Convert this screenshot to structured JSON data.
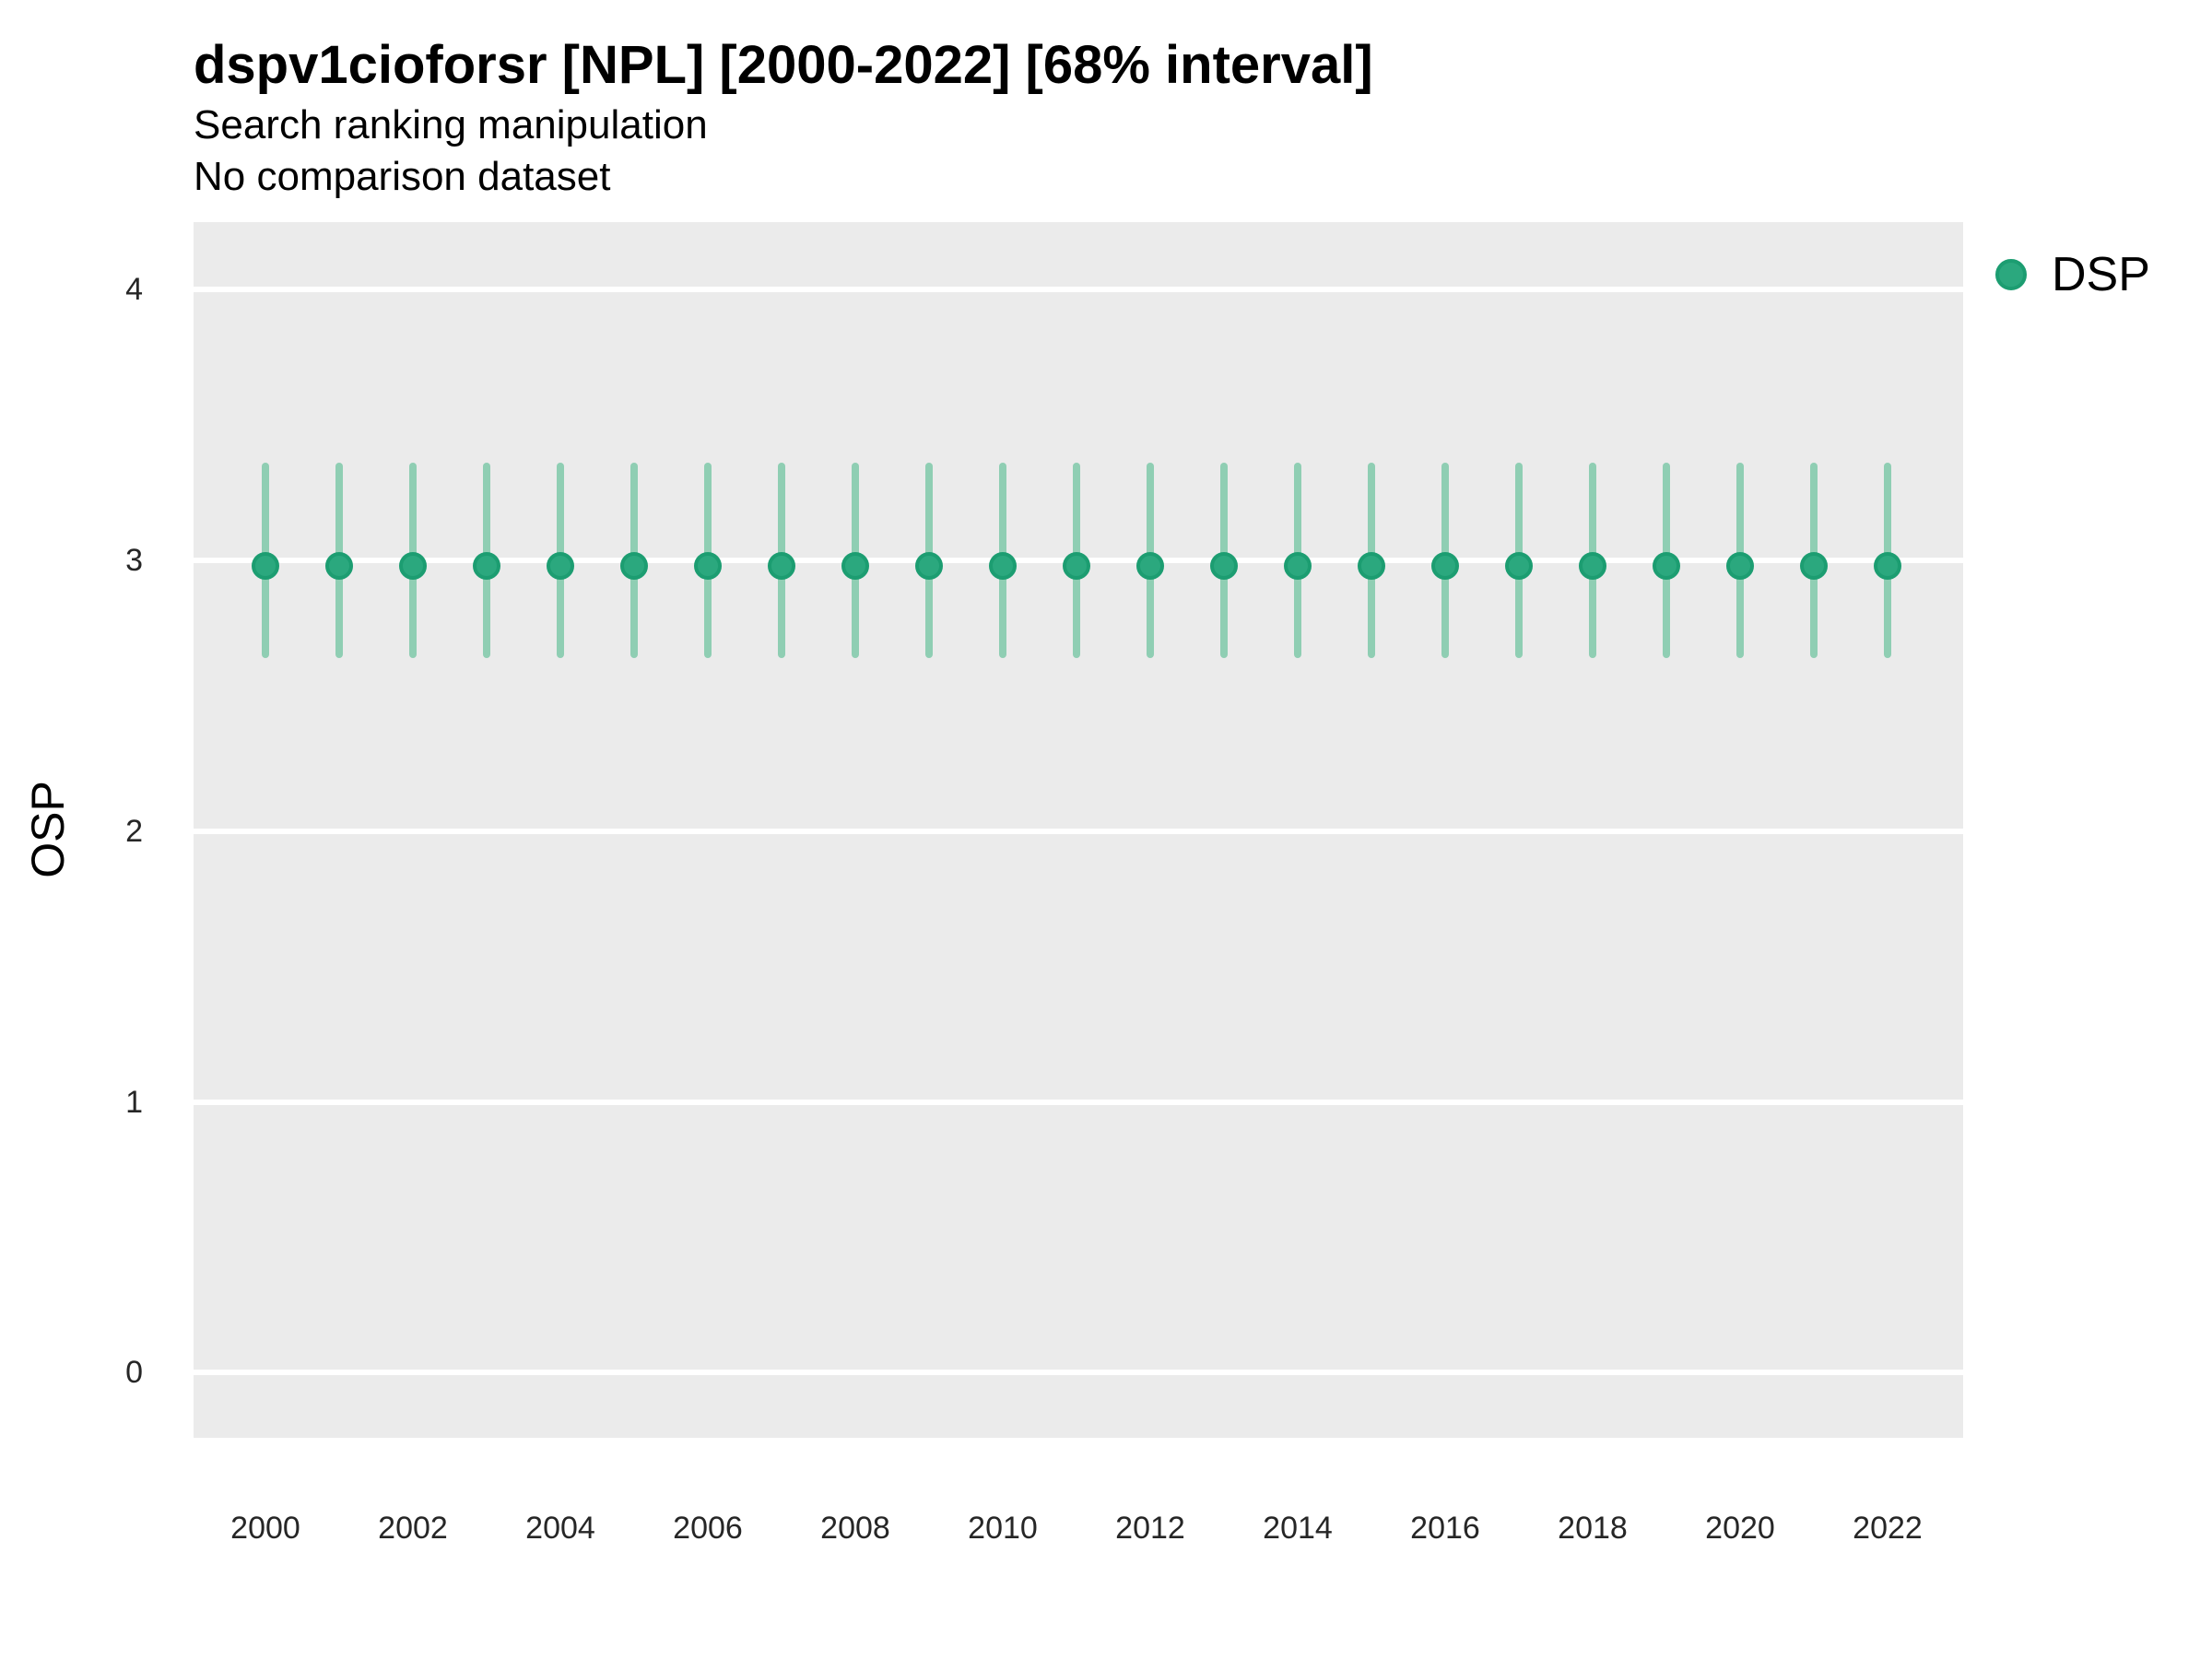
{
  "header": {
    "title": "dspv1cioforsr [NPL] [2000-2022] [68% interval]",
    "subtitle": "Search ranking manipulation",
    "note": "No comparison dataset"
  },
  "legend": {
    "label": "DSP",
    "position": "right-top"
  },
  "colors": {
    "point_fill": "#2BA87E",
    "point_stroke": "#1C9D71",
    "interval": "#8FCEB3",
    "panel_bg": "#EBEBEB",
    "gridline": "#FFFFFF",
    "tick_text": "#262626",
    "title_text": "#000000"
  },
  "chart_data": {
    "type": "pointrange",
    "title": "dspv1cioforsr [NPL] [2000-2022] [68% interval]",
    "subtitle": "Search ranking manipulation",
    "note": "No comparison dataset",
    "xlabel": "",
    "ylabel": "OSP",
    "interval_label": "68% interval",
    "x": [
      2000,
      2001,
      2002,
      2003,
      2004,
      2005,
      2006,
      2007,
      2008,
      2009,
      2010,
      2011,
      2012,
      2013,
      2014,
      2015,
      2016,
      2017,
      2018,
      2019,
      2020,
      2021,
      2022
    ],
    "xticks": [
      2000,
      2002,
      2004,
      2006,
      2008,
      2010,
      2012,
      2014,
      2016,
      2018,
      2020,
      2022
    ],
    "yticks": [
      0,
      1,
      2,
      3,
      4
    ],
    "ylim": [
      -0.24,
      4.25
    ],
    "grid": "horizontal-major-only",
    "legend_position": "right",
    "series": [
      {
        "name": "DSP",
        "estimates": [
          2.98,
          2.98,
          2.98,
          2.98,
          2.98,
          2.98,
          2.98,
          2.98,
          2.98,
          2.98,
          2.98,
          2.98,
          2.98,
          2.98,
          2.98,
          2.98,
          2.98,
          2.98,
          2.98,
          2.98,
          2.98,
          2.98,
          2.98
        ],
        "lower": [
          2.64,
          2.64,
          2.64,
          2.64,
          2.64,
          2.64,
          2.64,
          2.64,
          2.64,
          2.64,
          2.64,
          2.64,
          2.64,
          2.64,
          2.64,
          2.64,
          2.64,
          2.64,
          2.64,
          2.64,
          2.64,
          2.64,
          2.64
        ],
        "upper": [
          3.36,
          3.36,
          3.36,
          3.36,
          3.36,
          3.36,
          3.36,
          3.36,
          3.36,
          3.36,
          3.36,
          3.36,
          3.36,
          3.36,
          3.36,
          3.36,
          3.36,
          3.36,
          3.36,
          3.36,
          3.36,
          3.36,
          3.36
        ]
      }
    ]
  }
}
